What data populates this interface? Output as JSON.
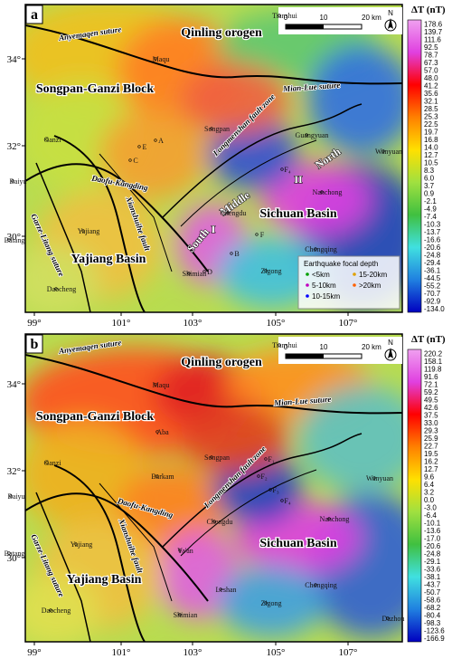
{
  "panels": [
    {
      "label": "a",
      "x_axis": [
        "99°",
        "101°",
        "103°",
        "105°",
        "107°"
      ],
      "y_axis": [
        "34°",
        "32°",
        "30°"
      ],
      "scale_bar": [
        "0",
        "10",
        "20 km"
      ],
      "north": "N",
      "colorbar": {
        "title": "ΔT (nT)",
        "labels": [
          "178.6",
          "139.7",
          "111.6",
          "92.5",
          "78.7",
          "67.3",
          "57.0",
          "48.0",
          "41.2",
          "35.6",
          "32.1",
          "28.5",
          "25.3",
          "22.5",
          "19.7",
          "16.8",
          "14.0",
          "12.7",
          "10.5",
          "8.3",
          "6.0",
          "3.7",
          "0.9",
          "-2.1",
          "-4.9",
          "-7.4",
          "-10.3",
          "-13.7",
          "-16.6",
          "-20.6",
          "-24.8",
          "-29.4",
          "-36.1",
          "-44.5",
          "-55.2",
          "-70.7",
          "-92.9",
          "-134.0"
        ]
      },
      "places": [
        "Anyemaqen suture",
        "Qinling orogen",
        "Tianshui",
        "Maqu",
        "Mian-Lue suture",
        "Songpan-Ganzi Block",
        "Songpan",
        "Longmenshan fault zone",
        "Guangyuan",
        "Wanyuan",
        "North",
        "II",
        "Middle",
        "I",
        "South",
        "Ganzi",
        "Baiyu",
        "Daofu-Kangding",
        "Xianshuihe fault",
        "Garze-Litang suture",
        "Yajiang",
        "Batang",
        "Yajiang Basin",
        "Daocheng",
        "Sichuan Basin",
        "Nanchong",
        "Chongqing",
        "Zigong",
        "Chengdu",
        "Shimian",
        "E",
        "A",
        "C",
        "B",
        "D",
        "F",
        "F₄"
      ],
      "legend": {
        "title": "Earthquake focal depth",
        "items": [
          "<5km",
          "15-20km",
          "5-10km",
          ">20km",
          "10-15km"
        ]
      }
    },
    {
      "label": "b",
      "x_axis": [
        "99°",
        "101°",
        "103°",
        "105°",
        "107°"
      ],
      "y_axis": [
        "34°",
        "32°",
        "30°"
      ],
      "scale_bar": [
        "0",
        "10",
        "20 km"
      ],
      "north": "N",
      "colorbar": {
        "title": "ΔT (nT)",
        "labels": [
          "220.2",
          "158.1",
          "119.8",
          "91.6",
          "72.1",
          "59.2",
          "49.5",
          "42.6",
          "37.5",
          "33.0",
          "29.3",
          "25.9",
          "22.7",
          "19.5",
          "16.2",
          "12.7",
          "9.6",
          "6.4",
          "3.2",
          "0.0",
          "-3.0",
          "-6.4",
          "-10.1",
          "-13.6",
          "-17.0",
          "-20.6",
          "-24.8",
          "-29.1",
          "-33.6",
          "-38.1",
          "-43.7",
          "-50.7",
          "-58.6",
          "-68.2",
          "-80.4",
          "-98.3",
          "-123.6",
          "-166.9"
        ]
      },
      "places": [
        "Anyemaqen suture",
        "Qinling orogen",
        "Tianshui",
        "Maqu",
        "Aba",
        "Songpan",
        "Mian-Lue suture",
        "Songpan-Ganzi Block",
        "Barkam",
        "Ganzi",
        "Baiyu",
        "Longmenshan fault zone",
        "Daofu-Kangding",
        "Xianshuihe fault",
        "Garze-Litang suture",
        "Yajiang",
        "Batang",
        "Yajiang Basin",
        "Daocheng",
        "Wanyuan",
        "Nanchong",
        "Chengdu",
        "Ya'an",
        "Sichuan Basin",
        "Leshan",
        "Zigong",
        "Chongqing",
        "Dazhou",
        "Shimian",
        "F₁",
        "F₂",
        "F₃",
        "F₄"
      ]
    }
  ]
}
